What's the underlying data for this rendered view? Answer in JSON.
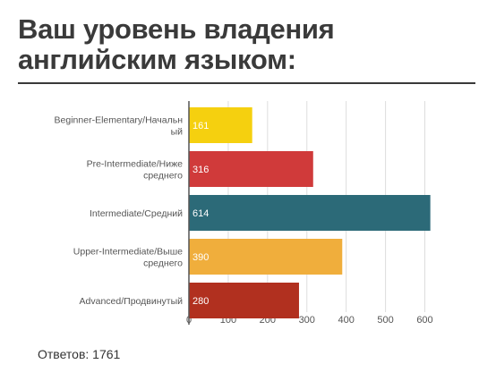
{
  "title_line1": "Ваш уровень владения",
  "title_line2": "английским языком:",
  "footer": "Ответов: 1761",
  "chart_data": {
    "type": "bar",
    "orientation": "horizontal",
    "categories": [
      [
        "Beginner-Elementary/Начальн",
        "ый"
      ],
      [
        "Pre-Intermediate/Ниже",
        "среднего"
      ],
      [
        "Intermediate/Средний"
      ],
      [
        "Upper-Intermediate/Выше",
        "среднего"
      ],
      [
        "Advanced/Продвинутый"
      ]
    ],
    "values": [
      161,
      316,
      614,
      390,
      280
    ],
    "value_labels": [
      "161",
      "316",
      "614",
      "390",
      "280"
    ],
    "colors": [
      "#f5d00f",
      "#d03a3a",
      "#2c6a78",
      "#f0ae3c",
      "#b1301f"
    ],
    "xticks": [
      0,
      100,
      200,
      300,
      400,
      500,
      600
    ],
    "xtick_labels": [
      "0",
      "100",
      "200",
      "300",
      "400",
      "500",
      "600"
    ],
    "xlim": [
      0,
      650
    ],
    "grid": true
  }
}
